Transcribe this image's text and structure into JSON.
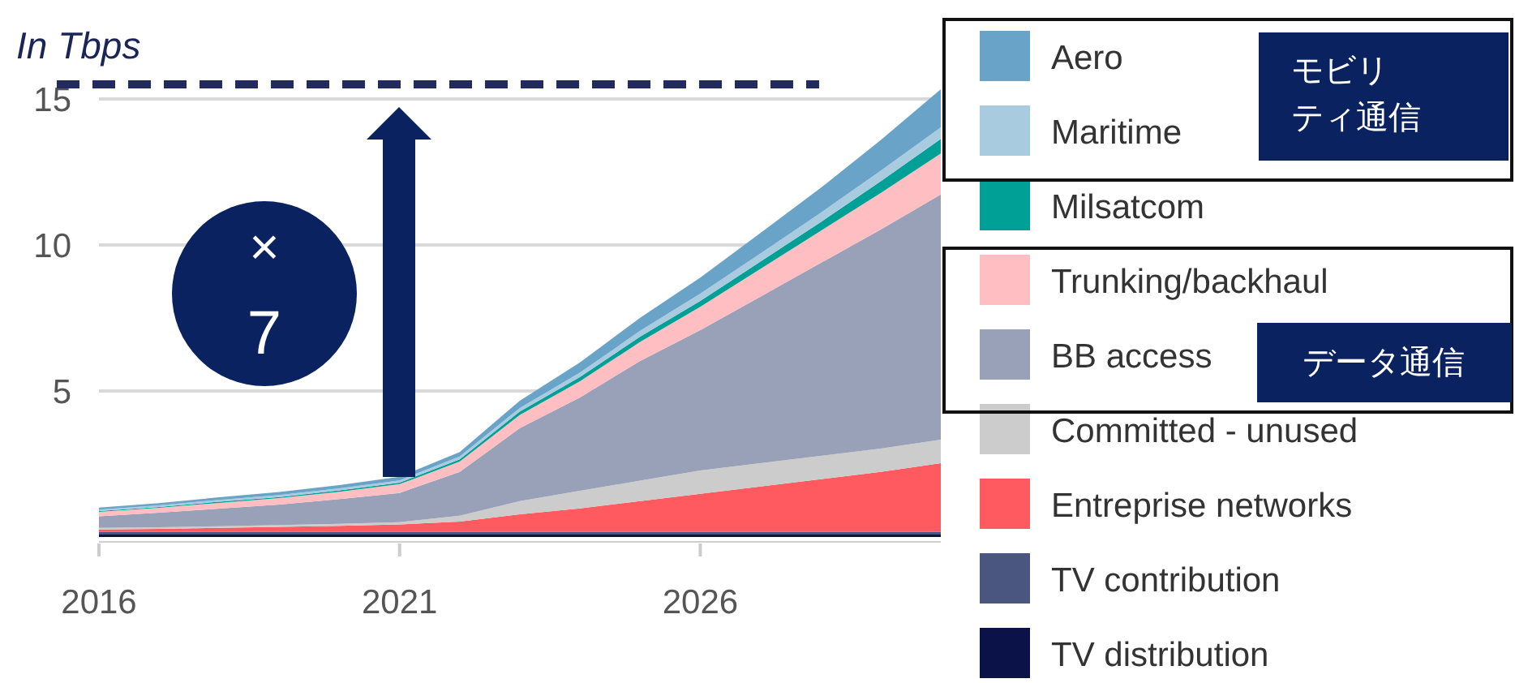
{
  "chart_data": {
    "type": "area",
    "stacked": true,
    "ylabel": "In Tbps",
    "x": [
      2016,
      2017,
      2018,
      2019,
      2020,
      2021,
      2022,
      2023,
      2024,
      2025,
      2026,
      2027,
      2028,
      2029,
      2030
    ],
    "xlim": [
      2016,
      2030
    ],
    "xticks": [
      2016,
      2021,
      2026
    ],
    "ylim": [
      0,
      15.5
    ],
    "yticks": [
      5,
      10,
      15
    ],
    "grid": "y",
    "legend": "right",
    "series": [
      {
        "name": "TV distribution",
        "color": "#0a1248",
        "values": [
          0.08,
          0.08,
          0.08,
          0.08,
          0.08,
          0.08,
          0.08,
          0.08,
          0.08,
          0.08,
          0.08,
          0.08,
          0.08,
          0.08,
          0.08
        ]
      },
      {
        "name": "TV contribution",
        "color": "#4a5580",
        "values": [
          0.1,
          0.1,
          0.1,
          0.1,
          0.1,
          0.1,
          0.1,
          0.1,
          0.1,
          0.1,
          0.1,
          0.1,
          0.1,
          0.1,
          0.1
        ]
      },
      {
        "name": "Entreprise networks",
        "color": "#ff5a5f",
        "values": [
          0.08,
          0.1,
          0.13,
          0.17,
          0.2,
          0.25,
          0.35,
          0.6,
          0.8,
          1.05,
          1.3,
          1.55,
          1.8,
          2.05,
          2.35
        ]
      },
      {
        "name": "Committed - unused",
        "color": "#cccccc",
        "values": [
          0.05,
          0.05,
          0.06,
          0.06,
          0.07,
          0.08,
          0.2,
          0.45,
          0.6,
          0.7,
          0.8,
          0.8,
          0.8,
          0.8,
          0.8
        ]
      },
      {
        "name": "BB access",
        "color": "#98a1b8",
        "values": [
          0.4,
          0.5,
          0.6,
          0.7,
          0.85,
          1.0,
          1.5,
          2.5,
          3.2,
          4.1,
          4.8,
          5.7,
          6.6,
          7.5,
          8.4
        ]
      },
      {
        "name": "Trunking/backhaul",
        "color": "#ffbfc2",
        "values": [
          0.15,
          0.17,
          0.2,
          0.22,
          0.25,
          0.3,
          0.35,
          0.45,
          0.55,
          0.65,
          0.8,
          0.95,
          1.1,
          1.25,
          1.4
        ]
      },
      {
        "name": "Milsatcom",
        "color": "#00a096",
        "values": [
          0.03,
          0.03,
          0.04,
          0.04,
          0.05,
          0.05,
          0.08,
          0.12,
          0.15,
          0.18,
          0.2,
          0.25,
          0.3,
          0.4,
          0.5
        ]
      },
      {
        "name": "Maritime",
        "color": "#a9cbe0",
        "values": [
          0.05,
          0.05,
          0.06,
          0.07,
          0.07,
          0.08,
          0.1,
          0.12,
          0.15,
          0.2,
          0.25,
          0.28,
          0.32,
          0.36,
          0.4
        ]
      },
      {
        "name": "Aero",
        "color": "#6aa3c8",
        "values": [
          0.07,
          0.08,
          0.09,
          0.1,
          0.11,
          0.12,
          0.15,
          0.25,
          0.35,
          0.45,
          0.55,
          0.7,
          0.85,
          1.05,
          1.3
        ]
      }
    ],
    "ref_lines": [
      {
        "axis": "y",
        "value": 15.5,
        "color": "#232a5c",
        "line_style": "dashed"
      }
    ],
    "annotations": [
      "×\n7",
      "モビリティ通信",
      "データ通信"
    ]
  }
}
